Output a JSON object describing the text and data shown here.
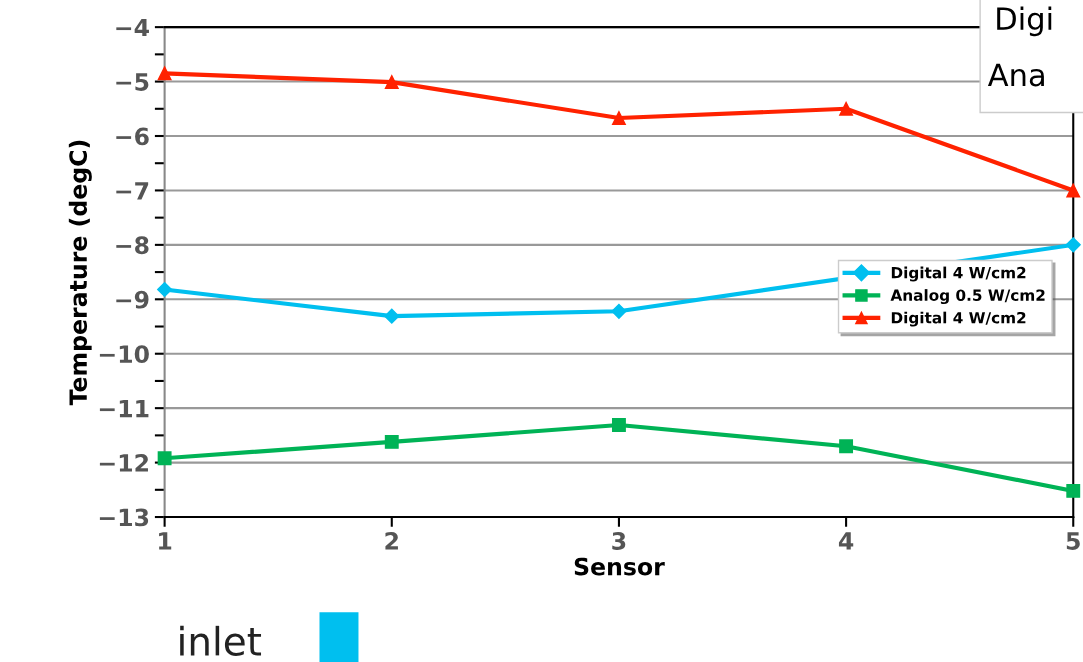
{
  "chart_data": {
    "type": "line",
    "xlabel": "Sensor",
    "ylabel": "Temperature (degC)",
    "x": [
      1,
      2,
      3,
      4,
      5
    ],
    "series": [
      {
        "name": "Digital 4 W/cm2",
        "color": "#00bfef",
        "marker": "diamond",
        "values": [
          -8.82,
          -9.31,
          -9.22,
          null,
          -8.0
        ]
      },
      {
        "name": "Analog 0.5 W/cm2",
        "color": "#00b356",
        "marker": "square",
        "values": [
          -11.92,
          -11.62,
          -11.31,
          -11.7,
          -12.52
        ]
      },
      {
        "name": "Digital 4 W/cm2",
        "color": "#ff2200",
        "marker": "triangle",
        "values": [
          -4.85,
          -5.01,
          -5.67,
          -5.5,
          -7.0
        ]
      }
    ],
    "xlim": [
      1,
      5
    ],
    "xticks": [
      1,
      2,
      3,
      4,
      5
    ],
    "ylim": [
      -13,
      -4
    ],
    "yticks": [
      -13,
      {
        "value": -12.5,
        "label": null
      },
      -12,
      {
        "value": -11.5,
        "label": null
      },
      -11,
      {
        "value": -10.5,
        "label": null
      },
      -10,
      {
        "value": -9.5,
        "label": null
      },
      -9,
      {
        "value": -8.5,
        "label": null
      },
      -8,
      {
        "value": -7.5,
        "label": null
      },
      -7,
      {
        "value": -6.5,
        "label": null
      },
      -6,
      {
        "value": -5.5,
        "label": null
      },
      -5,
      {
        "value": -4.5,
        "label": null
      },
      -4
    ],
    "grid": "y",
    "legend": "right",
    "line_style": "solid",
    "annotations": [
      "Digi",
      "Ana",
      "inlet"
    ]
  }
}
